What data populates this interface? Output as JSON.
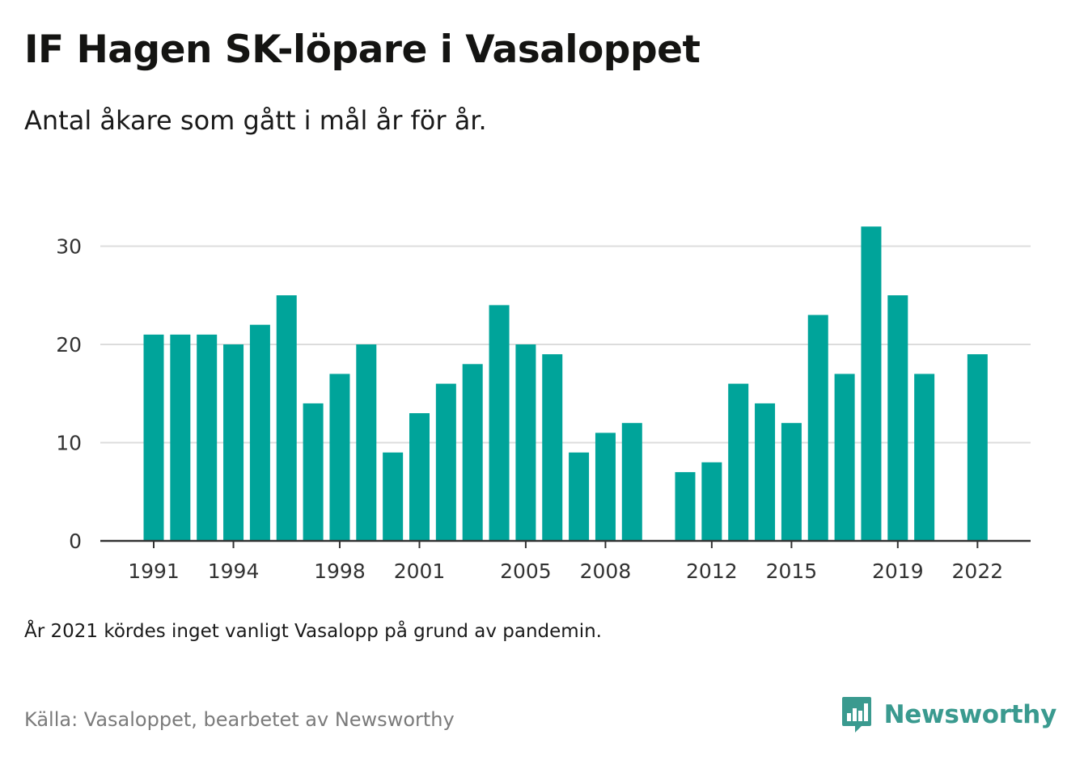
{
  "header": {
    "title": "IF Hagen SK-löpare i Vasaloppet",
    "subtitle": "Antal åkare som gått i mål år för år."
  },
  "footer": {
    "note": "År 2021 kördes inget vanligt Vasalopp på grund av pandemin.",
    "source": "Källa: Vasaloppet, bearbetet av Newsworthy",
    "brand": "Newsworthy",
    "brand_icon": "newsworthy-logo-icon"
  },
  "colors": {
    "bar": "#00a49a",
    "grid": "#dcdcdc",
    "axis": "#333333",
    "brand": "#3a9a8f"
  },
  "chart_data": {
    "type": "bar",
    "title": "IF Hagen SK-löpare i Vasaloppet",
    "xlabel": "",
    "ylabel": "",
    "ylim": [
      0,
      33
    ],
    "yticks": [
      0,
      10,
      20,
      30
    ],
    "grid": true,
    "legend": "none",
    "xticks": [
      1991,
      1994,
      1998,
      2001,
      2005,
      2008,
      2012,
      2015,
      2019,
      2022
    ],
    "categories": [
      1991,
      1992,
      1993,
      1994,
      1995,
      1996,
      1997,
      1998,
      1999,
      2000,
      2001,
      2002,
      2003,
      2004,
      2005,
      2006,
      2007,
      2008,
      2009,
      2010,
      2011,
      2012,
      2013,
      2014,
      2015,
      2016,
      2017,
      2018,
      2019,
      2020,
      2021,
      2022
    ],
    "values": [
      21,
      21,
      21,
      20,
      22,
      25,
      14,
      17,
      20,
      9,
      13,
      16,
      18,
      24,
      20,
      19,
      9,
      11,
      12,
      null,
      7,
      8,
      16,
      14,
      12,
      23,
      17,
      32,
      25,
      17,
      null,
      19
    ]
  }
}
